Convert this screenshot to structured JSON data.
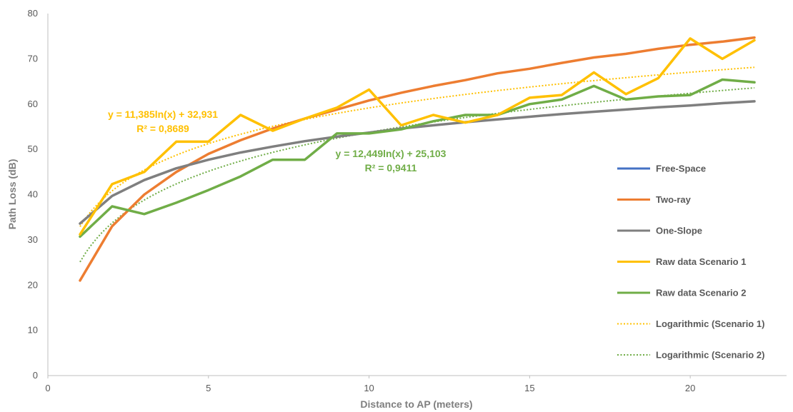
{
  "chart_data": {
    "type": "line",
    "title": "",
    "xlabel": "Distance to AP (meters)",
    "ylabel": "Path Loss (dB)",
    "xlim": [
      0,
      23
    ],
    "ylim": [
      0,
      80
    ],
    "xticks": [
      0,
      5,
      10,
      15,
      20
    ],
    "yticks": [
      0,
      10,
      20,
      30,
      40,
      50,
      60,
      70,
      80
    ],
    "grid": false,
    "legend_position": "right",
    "series": [
      {
        "name": "Free-Space",
        "color": "#4472C4",
        "style": "solid",
        "x": [],
        "y": []
      },
      {
        "name": "Two-ray",
        "color": "#ED7D31",
        "style": "solid",
        "x": [
          1,
          2,
          3,
          4,
          5,
          6,
          7,
          8,
          9,
          10,
          11,
          12,
          13,
          14,
          15,
          16,
          17,
          18,
          19,
          20,
          21,
          22
        ],
        "y": [
          21,
          33,
          40,
          45,
          49,
          52,
          54.6,
          56.8,
          58.8,
          60.8,
          62.5,
          64,
          65.3,
          66.8,
          67.8,
          69.1,
          70.3,
          71.1,
          72.2,
          73.1,
          73.8,
          74.7
        ]
      },
      {
        "name": "One-Slope",
        "color": "#7F7F7F",
        "style": "solid",
        "x": [
          1,
          2,
          3,
          4,
          5,
          6,
          7,
          8,
          9,
          10,
          11,
          12,
          13,
          14,
          15,
          16,
          17,
          18,
          19,
          20,
          21,
          22
        ],
        "y": [
          33.6,
          39.7,
          43.2,
          45.8,
          47.7,
          49.3,
          50.6,
          51.8,
          52.8,
          53.7,
          54.6,
          55.3,
          56,
          56.6,
          57.2,
          57.8,
          58.3,
          58.8,
          59.3,
          59.7,
          60.2,
          60.6
        ]
      },
      {
        "name": "Raw data Scenario 1",
        "color": "#FFC000",
        "style": "solid",
        "x": [
          1,
          2,
          3,
          4,
          5,
          6,
          7,
          8,
          9,
          10,
          11,
          12,
          13,
          14,
          15,
          16,
          17,
          18,
          19,
          20,
          21,
          22
        ],
        "y": [
          31.2,
          42.3,
          45,
          51.7,
          51.7,
          57.6,
          54.1,
          56.8,
          59.2,
          63.2,
          55.3,
          57.6,
          55.9,
          57.6,
          61.4,
          62,
          67,
          62.2,
          65.7,
          74.5,
          70,
          74.1
        ]
      },
      {
        "name": "Raw data Scenario 2",
        "color": "#70AD47",
        "style": "solid",
        "x": [
          1,
          2,
          3,
          4,
          5,
          6,
          7,
          8,
          9,
          10,
          11,
          12,
          13,
          14,
          15,
          16,
          17,
          18,
          19,
          20,
          21,
          22
        ],
        "y": [
          30.7,
          37.4,
          35.7,
          38.2,
          41,
          44,
          47.7,
          47.7,
          53.5,
          53.5,
          54.4,
          56.2,
          57.6,
          57.6,
          60,
          61,
          64,
          61,
          61.7,
          62,
          65.4,
          64.8
        ]
      },
      {
        "name": "Logarithmic (Scenario 1)",
        "color": "#FFC000",
        "style": "dotted",
        "fit": {
          "type": "log",
          "a": 11.385,
          "b": 32.931,
          "x_from": 1,
          "x_to": 22
        }
      },
      {
        "name": "Logarithmic (Scenario 2)",
        "color": "#70AD47",
        "style": "dotted",
        "fit": {
          "type": "log",
          "a": 12.449,
          "b": 25.103,
          "x_from": 1,
          "x_to": 22
        }
      }
    ],
    "annotations": [
      {
        "id": "eq1",
        "text": "y = 11,385ln(x) + 32,931",
        "color": "#FFC000"
      },
      {
        "id": "r1",
        "text": "R² = 0,8689",
        "color": "#FFC000"
      },
      {
        "id": "eq2",
        "text": "y = 12,449ln(x) + 25,103",
        "color": "#70AD47"
      },
      {
        "id": "r2",
        "text": "R² = 0,9411",
        "color": "#70AD47"
      }
    ]
  }
}
